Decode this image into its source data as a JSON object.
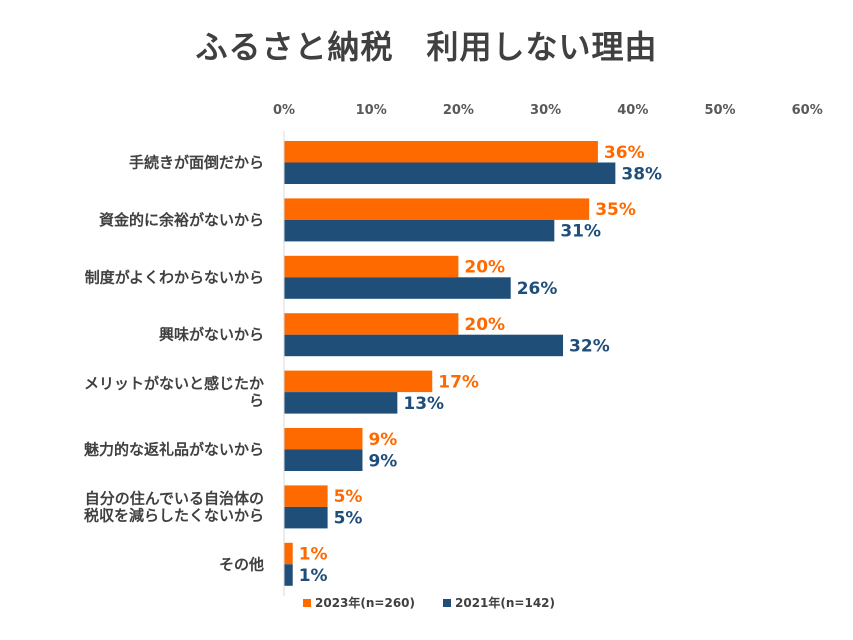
{
  "title": "ふるさと納税　利用しない理由",
  "chart_data": {
    "type": "bar",
    "orientation": "horizontal",
    "title": "ふるさと納税　利用しない理由",
    "categories": [
      [
        "手続きが面倒だから"
      ],
      [
        "資金的に余裕がないから"
      ],
      [
        "制度がよくわからないから"
      ],
      [
        "興味がないから"
      ],
      [
        "メリットがないと感じたか",
        "ら"
      ],
      [
        "魅力的な返礼品がないから"
      ],
      [
        "自分の住んでいる自治体の",
        "税収を減らしたくないから"
      ],
      [
        "その他"
      ]
    ],
    "series": [
      {
        "name": "2023年(n=260)",
        "color": "#FF6A00",
        "values": [
          36,
          35,
          20,
          20,
          17,
          9,
          5,
          1
        ]
      },
      {
        "name": "2021年(n=142)",
        "color": "#1F4E79",
        "values": [
          38,
          31,
          26,
          32,
          13,
          9,
          5,
          1
        ]
      }
    ],
    "xlim": [
      0,
      60
    ],
    "xticks": [
      0,
      10,
      20,
      30,
      40,
      50,
      60
    ],
    "tick_suffix": "%",
    "value_suffix": "%",
    "axis_position": "top",
    "legend_position": "bottom",
    "grid": false
  }
}
